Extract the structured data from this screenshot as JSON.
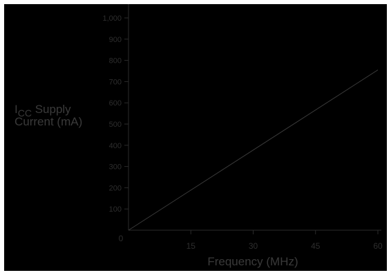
{
  "chart_data": {
    "type": "line",
    "title": "",
    "xlabel": "Frequency (MHz)",
    "ylabel_main": "I",
    "ylabel_sub": "CC",
    "ylabel_line1_rest": " Supply",
    "ylabel_line2": "Current (mA)",
    "xlim": [
      0,
      60
    ],
    "ylim": [
      0,
      1000
    ],
    "x_ticks": [
      0,
      15,
      30,
      45,
      60
    ],
    "x_tick_labels": [
      "0",
      "15",
      "30",
      "45",
      "60"
    ],
    "y_ticks": [
      100,
      200,
      300,
      400,
      500,
      600,
      700,
      800,
      900,
      1000
    ],
    "y_tick_labels": [
      "100",
      "200",
      "300",
      "400",
      "500",
      "600",
      "700",
      "800",
      "900",
      "1,000"
    ],
    "grid": false,
    "legend": "none",
    "series": [
      {
        "x": [
          0,
          60
        ],
        "y": [
          0,
          755
        ]
      }
    ],
    "colors": {
      "background": "#000000",
      "axis": "#2b2b2b",
      "tick_label": "#2e2e2e",
      "axis_label": "#3a3a3a",
      "series": "#3a3a3a"
    }
  }
}
